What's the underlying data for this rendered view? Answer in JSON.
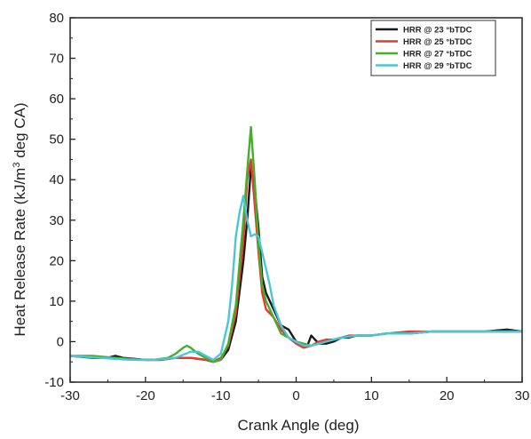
{
  "chart_data": {
    "type": "line",
    "xlabel": "Crank Angle (deg)",
    "ylabel_parts": {
      "main": "Heat Release Rate (kJ/m",
      "sup": "3",
      "rest": " deg CA)"
    },
    "xlim": [
      -30,
      30
    ],
    "ylim": [
      -10,
      80
    ],
    "xticks": [
      -30,
      -20,
      -10,
      0,
      10,
      20,
      30
    ],
    "yticks": [
      -10,
      0,
      10,
      20,
      30,
      40,
      50,
      60,
      70,
      80
    ],
    "grid": false,
    "legend_position": "top-right",
    "series": [
      {
        "name": "HRR @ 23 °bTDC",
        "color": "#1a1a1a",
        "x": [
          -30,
          -27,
          -25,
          -24,
          -23,
          -20,
          -18,
          -16,
          -14,
          -12,
          -11,
          -10,
          -9,
          -8,
          -7,
          -6.5,
          -6,
          -5.5,
          -5,
          -4.5,
          -4,
          -3,
          -2,
          -1,
          0,
          0.5,
          1,
          1.5,
          2,
          3,
          4,
          5,
          6,
          7,
          8,
          10,
          12,
          15,
          18,
          20,
          22,
          25,
          28,
          30
        ],
        "y": [
          -3.5,
          -4,
          -4,
          -3.5,
          -4,
          -4.5,
          -4.5,
          -4,
          -4,
          -4.5,
          -5,
          -4.5,
          -2,
          5,
          20,
          30,
          43,
          38,
          28,
          16,
          12,
          8,
          4,
          3,
          0,
          -0.5,
          -1,
          -1,
          1.5,
          -0.5,
          -0.5,
          0,
          1,
          1,
          1.5,
          1.5,
          2,
          2,
          2.5,
          2.5,
          2.5,
          2.5,
          3,
          2.5
        ]
      },
      {
        "name": "HRR @ 25 °bTDC",
        "color": "#e53935",
        "x": [
          -30,
          -25,
          -20,
          -18,
          -16,
          -14,
          -12,
          -11,
          -10,
          -9,
          -8,
          -7,
          -6.5,
          -6,
          -5.5,
          -5,
          -4.5,
          -4,
          -3,
          -2,
          -1,
          0,
          1,
          2,
          3,
          4,
          5,
          6,
          7,
          8,
          10,
          12,
          15,
          18,
          20,
          22,
          25,
          28,
          30
        ],
        "y": [
          -3.5,
          -4,
          -4.5,
          -4.5,
          -4,
          -4,
          -4.5,
          -5,
          -4,
          -1,
          7,
          25,
          40,
          45,
          34,
          22,
          12,
          8,
          6,
          3,
          1,
          -0.5,
          -1.5,
          -1,
          0,
          0.5,
          0.5,
          1,
          1.5,
          1.5,
          1.5,
          2,
          2.5,
          2.5,
          2.5,
          2.5,
          2.5,
          2.5,
          2.5
        ]
      },
      {
        "name": "HRR @ 27 °bTDC",
        "color": "#43b02a",
        "x": [
          -30,
          -27,
          -24,
          -21,
          -19,
          -17,
          -16,
          -15,
          -14.5,
          -14,
          -13,
          -12,
          -11,
          -10,
          -9,
          -8,
          -7,
          -6.5,
          -6,
          -5.5,
          -5,
          -4.5,
          -4,
          -3,
          -2,
          -1,
          0,
          1,
          2,
          3,
          4,
          5,
          6,
          8,
          10,
          12,
          15,
          18,
          20,
          22,
          25,
          28,
          30
        ],
        "y": [
          -3.5,
          -3.5,
          -4,
          -4.5,
          -4.5,
          -4,
          -3,
          -1.5,
          -1,
          -1.5,
          -3,
          -4,
          -5,
          -4.5,
          -0.5,
          9,
          30,
          42,
          53,
          40,
          24,
          14,
          10,
          6,
          2,
          1,
          0,
          -0.5,
          -1,
          -0.5,
          0,
          0.5,
          1,
          1.5,
          1.5,
          2,
          2,
          2.5,
          2.5,
          2.5,
          2.5,
          2.5,
          2.5
        ]
      },
      {
        "name": "HRR @ 29 °bTDC",
        "color": "#4cc6d6",
        "x": [
          -30,
          -26,
          -22,
          -19,
          -16,
          -14,
          -13,
          -12,
          -11,
          -10,
          -9,
          -8.5,
          -8,
          -7.5,
          -7,
          -6.5,
          -6,
          -5.5,
          -5,
          -4.5,
          -4,
          -3.5,
          -3,
          -2,
          -1,
          0,
          1,
          2,
          3,
          4,
          5,
          6,
          8,
          10,
          12,
          15,
          18,
          20,
          22,
          25,
          28,
          30
        ],
        "y": [
          -3.5,
          -4,
          -4.5,
          -4.5,
          -4,
          -2.5,
          -2.5,
          -3.5,
          -4.5,
          -3,
          5,
          14,
          26,
          32,
          36,
          30,
          26,
          26.5,
          26,
          22,
          18,
          14,
          9,
          4,
          1,
          0,
          -1,
          -1,
          -0.5,
          0,
          0.5,
          1,
          1.5,
          1.5,
          2,
          2,
          2.5,
          2.5,
          2.5,
          2.5,
          2.5,
          2.5
        ]
      }
    ]
  }
}
